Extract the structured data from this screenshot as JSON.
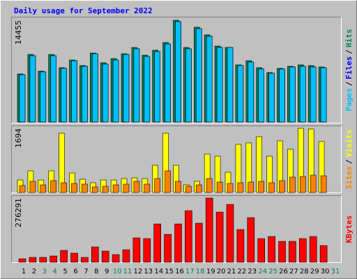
{
  "chart_data": [
    {
      "type": "bar",
      "title": "Daily usage for September 2022",
      "series": [
        {
          "name": "Hits",
          "color": "#00805c",
          "values": [
            6830,
            9600,
            7230,
            9600,
            7720,
            8810,
            8020,
            9800,
            8420,
            9010,
            9700,
            10590,
            9500,
            10200,
            11290,
            14455,
            10590,
            13470,
            12380,
            10790,
            10590,
            8120,
            8710,
            7720,
            7030,
            7620,
            7920,
            8120,
            8020,
            7820,
            null
          ]
        },
        {
          "name": "Files",
          "color": "#0000ff",
          "values": [
            6730,
            9410,
            7130,
            9410,
            7620,
            8710,
            7920,
            9700,
            8220,
            8810,
            9600,
            10400,
            9310,
            10000,
            11090,
            14260,
            10400,
            13270,
            12180,
            10590,
            10590,
            8020,
            8520,
            7530,
            6930,
            7530,
            7820,
            7920,
            7820,
            7720,
            null
          ]
        },
        {
          "name": "Pages",
          "color": "#00c0ff",
          "values": [
            6730,
            9410,
            7130,
            9410,
            7620,
            8710,
            7920,
            9700,
            8220,
            8810,
            9600,
            10400,
            9310,
            10000,
            11090,
            14260,
            10400,
            13270,
            12180,
            10590,
            10590,
            8020,
            8520,
            7530,
            6930,
            7530,
            7820,
            7920,
            7820,
            7720,
            null
          ]
        }
      ],
      "legend_separator": "/",
      "ylim": [
        0,
        14455
      ],
      "yticks": [
        14455
      ]
    },
    {
      "type": "bar",
      "series": [
        {
          "name": "Visits",
          "color": "#ffff00",
          "values": [
            331,
            571,
            331,
            571,
            1565,
            516,
            350,
            258,
            331,
            331,
            368,
            387,
            368,
            718,
            1565,
            718,
            203,
            295,
            1013,
            958,
            534,
            1271,
            1308,
            1473,
            958,
            1363,
            1142,
            1694,
            1676,
            1345,
            null
          ]
        },
        {
          "name": "Sites",
          "color": "#ff8000",
          "values": [
            184,
            295,
            202,
            313,
            258,
            239,
            221,
            147,
            166,
            202,
            221,
            295,
            221,
            368,
            571,
            295,
            166,
            202,
            368,
            276,
            239,
            258,
            276,
            295,
            258,
            313,
            405,
            423,
            460,
            442,
            null
          ]
        }
      ],
      "legend_separator": "/",
      "ylim": [
        0,
        1694
      ],
      "yticks": [
        1694
      ]
    },
    {
      "type": "bar",
      "series": [
        {
          "name": "KBytes",
          "color": "#ff0000",
          "values": [
            15000,
            21000,
            21000,
            27000,
            51000,
            39000,
            21000,
            66000,
            48000,
            33000,
            54000,
            105000,
            102000,
            165000,
            120000,
            165000,
            222000,
            168000,
            276291,
            216000,
            249000,
            141000,
            192000,
            102000,
            111000,
            90000,
            90000,
            102000,
            111000,
            72000,
            null
          ]
        }
      ],
      "categories": [
        "1",
        "2",
        "3",
        "4",
        "5",
        "6",
        "7",
        "8",
        "9",
        "10",
        "11",
        "12",
        "13",
        "14",
        "15",
        "16",
        "17",
        "18",
        "19",
        "20",
        "21",
        "22",
        "23",
        "24",
        "25",
        "26",
        "27",
        "28",
        "29",
        "30",
        "31"
      ],
      "category_colors": [
        "#000000",
        "#000000",
        "#00805c",
        "#00805c",
        "#000000",
        "#000000",
        "#000000",
        "#000000",
        "#000000",
        "#00805c",
        "#00805c",
        "#000000",
        "#000000",
        "#000000",
        "#000000",
        "#000000",
        "#00805c",
        "#00805c",
        "#000000",
        "#000000",
        "#000000",
        "#000000",
        "#000000",
        "#00805c",
        "#00805c",
        "#000000",
        "#000000",
        "#000000",
        "#000000",
        "#000000",
        "#00805c"
      ],
      "ylim": [
        0,
        276291
      ],
      "yticks": [
        276291
      ]
    }
  ]
}
